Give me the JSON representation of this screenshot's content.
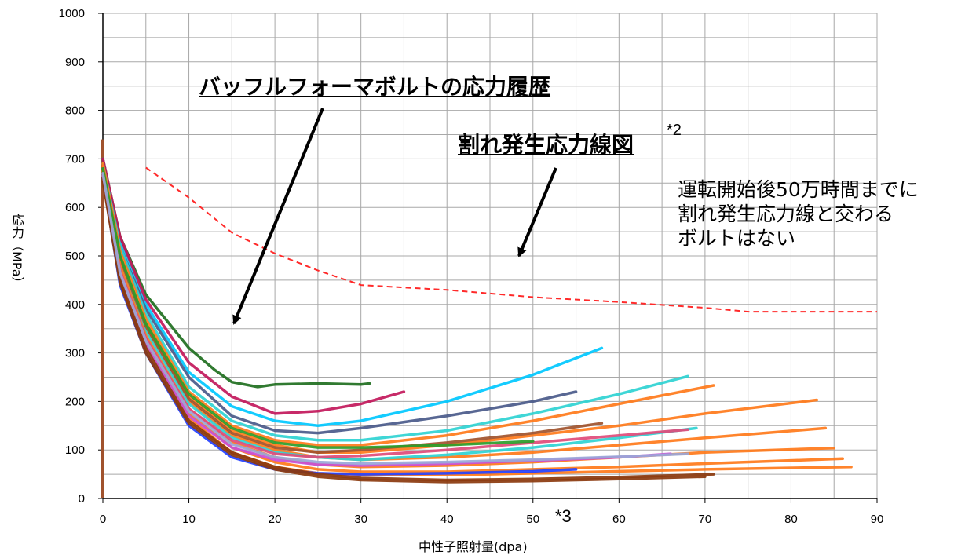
{
  "chart_data": {
    "type": "line",
    "xlabel": "中性子照射量(dpa)",
    "ylabel": "応力（MPa）",
    "xlim": [
      0,
      90
    ],
    "ylim": [
      0,
      1000
    ],
    "x_ticks": [
      "0",
      "10",
      "20",
      "30",
      "40",
      "50",
      "60",
      "70",
      "80",
      "90"
    ],
    "y_ticks": [
      "0",
      "100",
      "200",
      "300",
      "400",
      "500",
      "600",
      "700",
      "800",
      "900",
      "1000"
    ],
    "grid": true,
    "annotations": {
      "bolt_history": "バッフルフォーマボルトの応力履歴",
      "crack_curve": "割れ発生応力線図",
      "crack_curve_sup": "*2",
      "note_lines": [
        "運転開始後50万時間までに",
        "割れ発生応力線と交わる",
        "ボルトはない"
      ],
      "x_marker": "*3"
    },
    "crack_initiation_curve": {
      "color": "#ff2a2a",
      "style": "dashed",
      "x": [
        5,
        10,
        15,
        20,
        25,
        30,
        40,
        50,
        60,
        70,
        75,
        80,
        90
      ],
      "y": [
        682,
        620,
        548,
        505,
        470,
        440,
        430,
        415,
        405,
        393,
        385,
        385,
        385
      ]
    },
    "bolt_histories": [
      {
        "color": "#00c8ff",
        "x": [
          0,
          2,
          5,
          10,
          15,
          20,
          25,
          30,
          40,
          50,
          58
        ],
        "y": [
          700,
          530,
          400,
          260,
          190,
          160,
          150,
          160,
          200,
          255,
          310
        ]
      },
      {
        "color": "#1f6f1f",
        "x": [
          0,
          2,
          5,
          10,
          13,
          15,
          18,
          20,
          25,
          30,
          31
        ],
        "y": [
          700,
          540,
          420,
          310,
          265,
          240,
          230,
          235,
          237,
          235,
          237
        ]
      },
      {
        "color": "#c2185b",
        "x": [
          0,
          2,
          5,
          10,
          15,
          20,
          25,
          30,
          35
        ],
        "y": [
          700,
          540,
          410,
          280,
          210,
          175,
          180,
          195,
          220
        ]
      },
      {
        "color": "#4a5a8a",
        "x": [
          0,
          2,
          5,
          10,
          15,
          20,
          25,
          30,
          40,
          50,
          55
        ],
        "y": [
          690,
          520,
          390,
          250,
          170,
          140,
          135,
          145,
          170,
          200,
          220
        ]
      },
      {
        "color": "#2fd3d3",
        "x": [
          0,
          2,
          5,
          10,
          15,
          20,
          25,
          30,
          40,
          50,
          60,
          68
        ],
        "y": [
          690,
          520,
          380,
          230,
          160,
          130,
          120,
          120,
          140,
          175,
          215,
          252
        ]
      },
      {
        "color": "#ff7a1a",
        "x": [
          0,
          2,
          5,
          10,
          15,
          20,
          25,
          30,
          40,
          50,
          60,
          71
        ],
        "y": [
          690,
          510,
          370,
          220,
          150,
          120,
          110,
          110,
          130,
          160,
          195,
          233
        ]
      },
      {
        "color": "#ff7a1a",
        "x": [
          0,
          2,
          5,
          10,
          15,
          20,
          25,
          30,
          40,
          50,
          60,
          70,
          83
        ],
        "y": [
          685,
          500,
          360,
          210,
          140,
          110,
          95,
          95,
          110,
          130,
          150,
          175,
          203
        ]
      },
      {
        "color": "#ff7a1a",
        "x": [
          0,
          2,
          5,
          10,
          15,
          20,
          25,
          30,
          40,
          50,
          60,
          70,
          84
        ],
        "y": [
          680,
          490,
          350,
          200,
          130,
          100,
          85,
          80,
          85,
          95,
          110,
          125,
          145
        ]
      },
      {
        "color": "#2fd3d3",
        "x": [
          0,
          2,
          5,
          10,
          15,
          20,
          25,
          30,
          40,
          50,
          60,
          69
        ],
        "y": [
          680,
          490,
          345,
          195,
          125,
          95,
          85,
          80,
          90,
          105,
          125,
          145
        ]
      },
      {
        "color": "#a0522d",
        "x": [
          0,
          2,
          5,
          10,
          15,
          20,
          25,
          30,
          40,
          50,
          58
        ],
        "y": [
          680,
          495,
          355,
          205,
          135,
          105,
          95,
          100,
          115,
          135,
          155
        ]
      },
      {
        "color": "#ff7a1a",
        "x": [
          0,
          2,
          5,
          10,
          15,
          20,
          25,
          30,
          40,
          50,
          60,
          70,
          85
        ],
        "y": [
          675,
          480,
          335,
          185,
          115,
          85,
          70,
          65,
          68,
          75,
          85,
          95,
          104
        ]
      },
      {
        "color": "#ff7a1a",
        "x": [
          0,
          2,
          5,
          10,
          15,
          20,
          25,
          30,
          40,
          50,
          60,
          70,
          86
        ],
        "y": [
          670,
          470,
          325,
          175,
          105,
          75,
          60,
          55,
          55,
          60,
          65,
          72,
          82
        ]
      },
      {
        "color": "#ff7a1a",
        "x": [
          0,
          2,
          5,
          10,
          15,
          20,
          25,
          30,
          40,
          50,
          60,
          70,
          87
        ],
        "y": [
          665,
          460,
          315,
          165,
          95,
          65,
          52,
          48,
          48,
          52,
          56,
          60,
          65
        ]
      },
      {
        "color": "#2340ff",
        "x": [
          0,
          2,
          5,
          10,
          15,
          20,
          25,
          30,
          40,
          50,
          55
        ],
        "y": [
          660,
          440,
          300,
          150,
          85,
          60,
          52,
          50,
          52,
          56,
          60
        ]
      },
      {
        "color": "#c94fd6",
        "x": [
          0,
          2,
          5,
          10,
          15,
          20,
          25,
          30,
          40,
          50,
          60,
          66
        ],
        "y": [
          665,
          455,
          315,
          170,
          105,
          80,
          70,
          68,
          72,
          78,
          85,
          92
        ]
      },
      {
        "color": "#8b3a0e",
        "x": [
          0,
          2,
          5,
          10,
          15,
          20,
          25,
          30,
          40,
          50,
          60,
          71
        ],
        "y": [
          660,
          450,
          310,
          160,
          95,
          65,
          50,
          42,
          38,
          40,
          44,
          50
        ]
      },
      {
        "color": "#8b3a0e",
        "x": [
          0,
          2,
          5,
          10,
          15,
          20,
          25,
          30,
          40,
          50,
          60,
          70
        ],
        "y": [
          655,
          445,
          300,
          155,
          90,
          60,
          45,
          38,
          34,
          36,
          40,
          45
        ]
      },
      {
        "color": "#e04b7a",
        "x": [
          0,
          2,
          5,
          10,
          15,
          20,
          25,
          30,
          40,
          50,
          60,
          68
        ],
        "y": [
          670,
          470,
          330,
          185,
          120,
          92,
          85,
          88,
          100,
          115,
          130,
          142
        ]
      },
      {
        "color": "#2a9d2a",
        "x": [
          0,
          2,
          5,
          10,
          15,
          20,
          25,
          30,
          40,
          50
        ],
        "y": [
          680,
          500,
          360,
          215,
          145,
          115,
          105,
          105,
          110,
          118
        ]
      },
      {
        "color": "#9aa7d8",
        "x": [
          0,
          2,
          5,
          10,
          15,
          20,
          25,
          30,
          40,
          50,
          60,
          68
        ],
        "y": [
          670,
          465,
          325,
          180,
          112,
          85,
          75,
          72,
          75,
          80,
          86,
          92
        ]
      }
    ]
  }
}
